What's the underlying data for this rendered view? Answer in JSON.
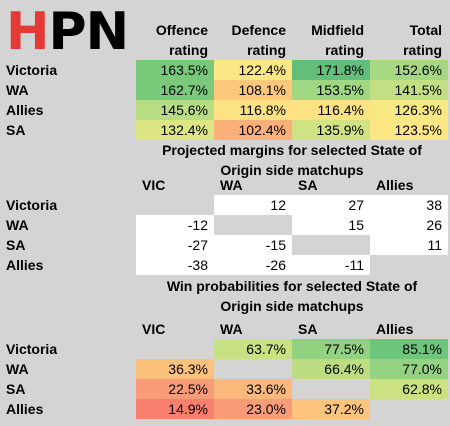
{
  "logo": {
    "h": "H",
    "pn": "PN"
  },
  "ratings": {
    "headers": [
      {
        "l1": "Offence",
        "l2": "rating"
      },
      {
        "l1": "Defence",
        "l2": "rating"
      },
      {
        "l1": "Midfield",
        "l2": "rating"
      },
      {
        "l1": "Total",
        "l2": "rating"
      }
    ],
    "rows": [
      {
        "name": "Victoria",
        "values": [
          "163.5%",
          "122.4%",
          "171.8%",
          "152.6%"
        ],
        "colors": [
          "#78c97a",
          "#fbe885",
          "#63be7b",
          "#a6d883"
        ]
      },
      {
        "name": "WA",
        "values": [
          "162.7%",
          "108.1%",
          "153.5%",
          "141.5%"
        ],
        "colors": [
          "#7bca7b",
          "#fcc97c",
          "#9fd782",
          "#c2e083"
        ]
      },
      {
        "name": "Allies",
        "values": [
          "145.6%",
          "116.8%",
          "116.4%",
          "126.3%"
        ],
        "colors": [
          "#b8dd83",
          "#fde283",
          "#fde283",
          "#f8e884"
        ]
      },
      {
        "name": "SA",
        "values": [
          "132.4%",
          "102.4%",
          "135.9%",
          "123.5%"
        ],
        "colors": [
          "#dce683",
          "#fbb07a",
          "#d0e383",
          "#fde784"
        ]
      }
    ]
  },
  "margins": {
    "title1": "Projected margins for selected State of",
    "title2": "Origin side matchups",
    "cols": [
      "VIC",
      "WA",
      "SA",
      "Allies"
    ],
    "rows": [
      {
        "name": "Victoria",
        "values": [
          "",
          "12",
          "27",
          "38"
        ]
      },
      {
        "name": "WA",
        "values": [
          "-12",
          "",
          "15",
          "26"
        ]
      },
      {
        "name": "SA",
        "values": [
          "-27",
          "-15",
          "",
          "11"
        ]
      },
      {
        "name": "Allies",
        "values": [
          "-38",
          "-26",
          "-11",
          ""
        ]
      }
    ]
  },
  "winprob": {
    "title1": "Win probabilities for selected State of",
    "title2": "Origin side matchups",
    "cols": [
      "VIC",
      "WA",
      "SA",
      "Allies"
    ],
    "rows": [
      {
        "name": "Victoria",
        "values": [
          "",
          "63.7%",
          "77.5%",
          "85.1%"
        ],
        "colors": [
          "",
          "#c8e183",
          "#92d281",
          "#6ec57c"
        ]
      },
      {
        "name": "WA",
        "values": [
          "36.3%",
          "",
          "66.4%",
          "77.0%"
        ],
        "colors": [
          "#fcc27c",
          "",
          "#bedd82",
          "#94d381"
        ]
      },
      {
        "name": "SA",
        "values": [
          "22.5%",
          "33.6%",
          "",
          "62.8%"
        ],
        "colors": [
          "#f99c77",
          "#fcb97b",
          "",
          "#cbe283"
        ]
      },
      {
        "name": "Allies",
        "values": [
          "14.9%",
          "23.0%",
          "37.2%",
          ""
        ],
        "colors": [
          "#f8806d",
          "#f99c77",
          "#fcc47c",
          ""
        ]
      }
    ]
  }
}
